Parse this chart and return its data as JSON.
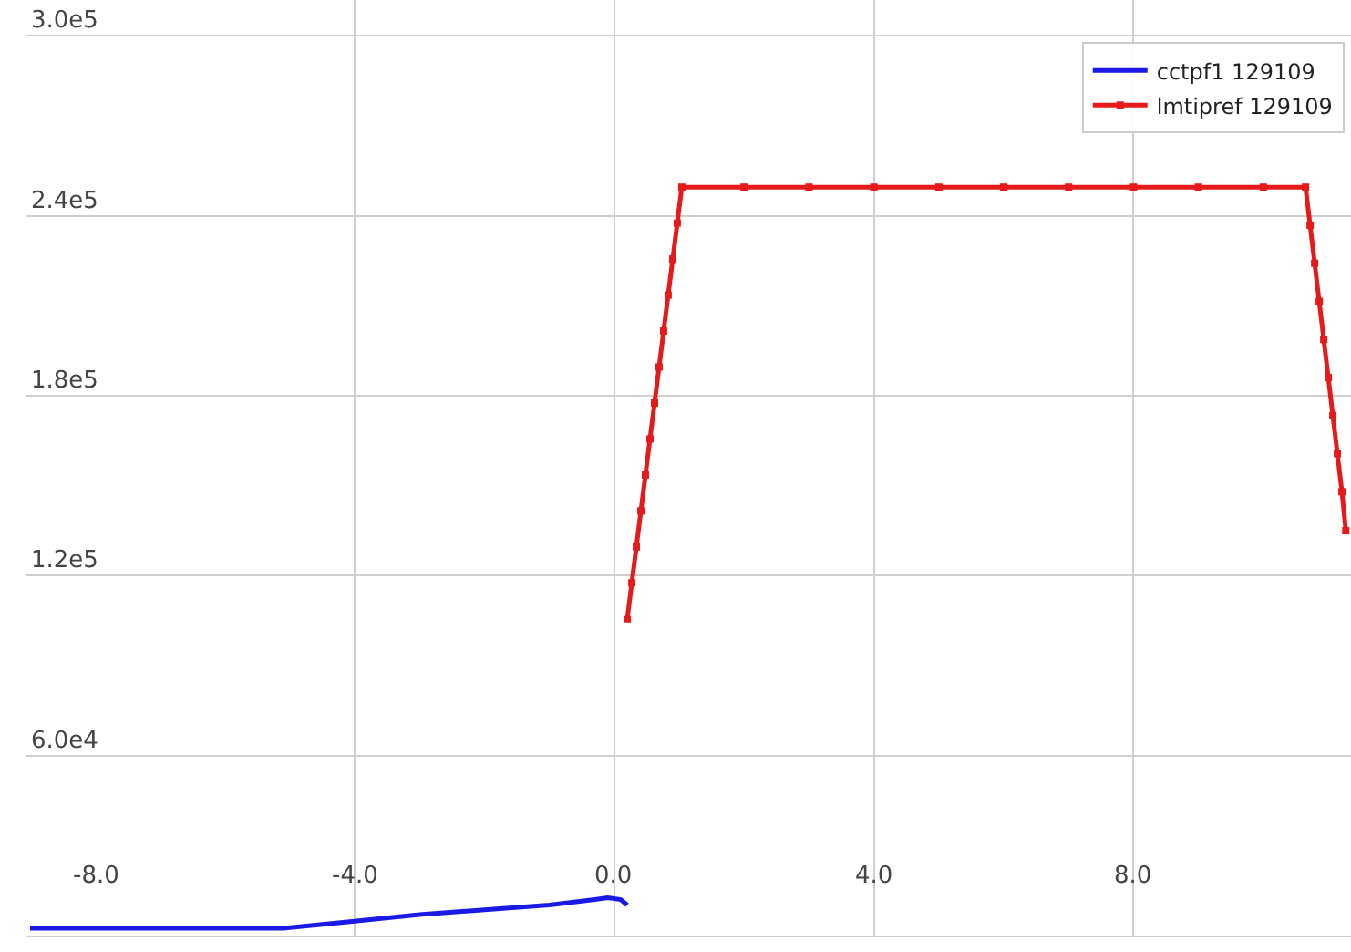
{
  "chart_data": {
    "type": "line",
    "xlim": [
      -9.07,
      11.35
    ],
    "ylim": [
      0,
      312000
    ],
    "xticks": [
      {
        "value": -8,
        "label": "-8.0"
      },
      {
        "value": -4,
        "label": "-4.0"
      },
      {
        "value": 0,
        "label": "0.0"
      },
      {
        "value": 4,
        "label": "4.0"
      },
      {
        "value": 8,
        "label": "8.0"
      }
    ],
    "yticks": [
      {
        "value": 60000,
        "label": "6.0e4"
      },
      {
        "value": 120000,
        "label": "1.2e5"
      },
      {
        "value": 180000,
        "label": "1.8e5"
      },
      {
        "value": 240000,
        "label": "2.4e5"
      },
      {
        "value": 300000,
        "label": "3.0e5"
      }
    ],
    "grid": true,
    "legend": "top right",
    "line_style": "solid",
    "series": [
      {
        "name": "cctpf1 129109",
        "color": "#1a1ae6",
        "marker": "none",
        "x": [
          -9.0,
          -5.1,
          -4.0,
          -3.0,
          -2.0,
          -1.0,
          -0.3,
          -0.1,
          0.1,
          0.2
        ],
        "values": [
          2400,
          2400,
          4800,
          7000,
          8600,
          10200,
          12000,
          12600,
          12000,
          10200
        ]
      },
      {
        "name": "lmtipref 129109",
        "color": "#e61a1a",
        "marker": "square",
        "x": [
          0.2,
          0.27,
          0.34,
          0.41,
          0.48,
          0.55,
          0.62,
          0.69,
          0.76,
          0.83,
          0.9,
          0.97,
          1.04,
          2.0,
          3.0,
          4.0,
          5.0,
          6.0,
          7.0,
          8.0,
          9.0,
          10.0,
          10.65,
          10.72,
          10.79,
          10.86,
          10.93,
          11.0,
          11.07,
          11.14,
          11.21,
          11.27
        ],
        "values": [
          105600,
          117600,
          129600,
          141600,
          153600,
          165600,
          177600,
          189600,
          201600,
          213600,
          225600,
          237600,
          249600,
          249600,
          249600,
          249600,
          249600,
          249600,
          249600,
          249600,
          249600,
          249600,
          249600,
          236900,
          224200,
          211500,
          198800,
          186100,
          173400,
          160700,
          148000,
          135000
        ]
      }
    ]
  }
}
